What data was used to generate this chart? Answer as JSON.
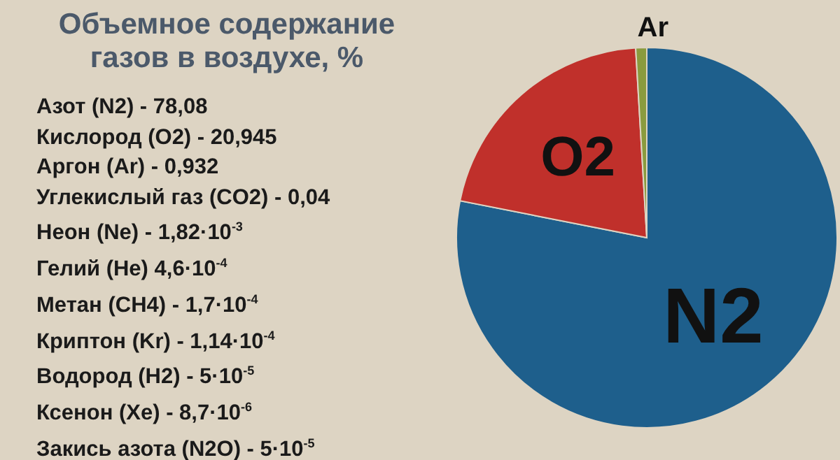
{
  "chart_data": {
    "type": "pie",
    "title": "Объемное содержание газов в воздухе, %",
    "categories": [
      "N2",
      "O2",
      "Ar"
    ],
    "values": [
      78.08,
      20.945,
      0.932
    ],
    "colors": [
      "#1e5f8c",
      "#c0302b",
      "#8a9b3e"
    ],
    "annotations": [
      "Азот (N2) - 78,08",
      "Кислород (O2) - 20,945",
      "Аргон (Ar) - 0,932",
      "Углекислый газ (CO2) - 0,04",
      "Неон (Ne) - 1,82·10$^{-3}$",
      "Гелий (He) 4,6·10$^{-4}$",
      "Метан (CH4) - 1,7·10$^{-4}$",
      "Криптон (Kr) - 1,14·10$^{-4}$",
      "Водород (H2) - 5·10$^{-5}$",
      "Ксенон (Xe) - 8,7·10$^{-6}$",
      "Закись азота (N2O) - 5·10$^{-5}$"
    ]
  }
}
